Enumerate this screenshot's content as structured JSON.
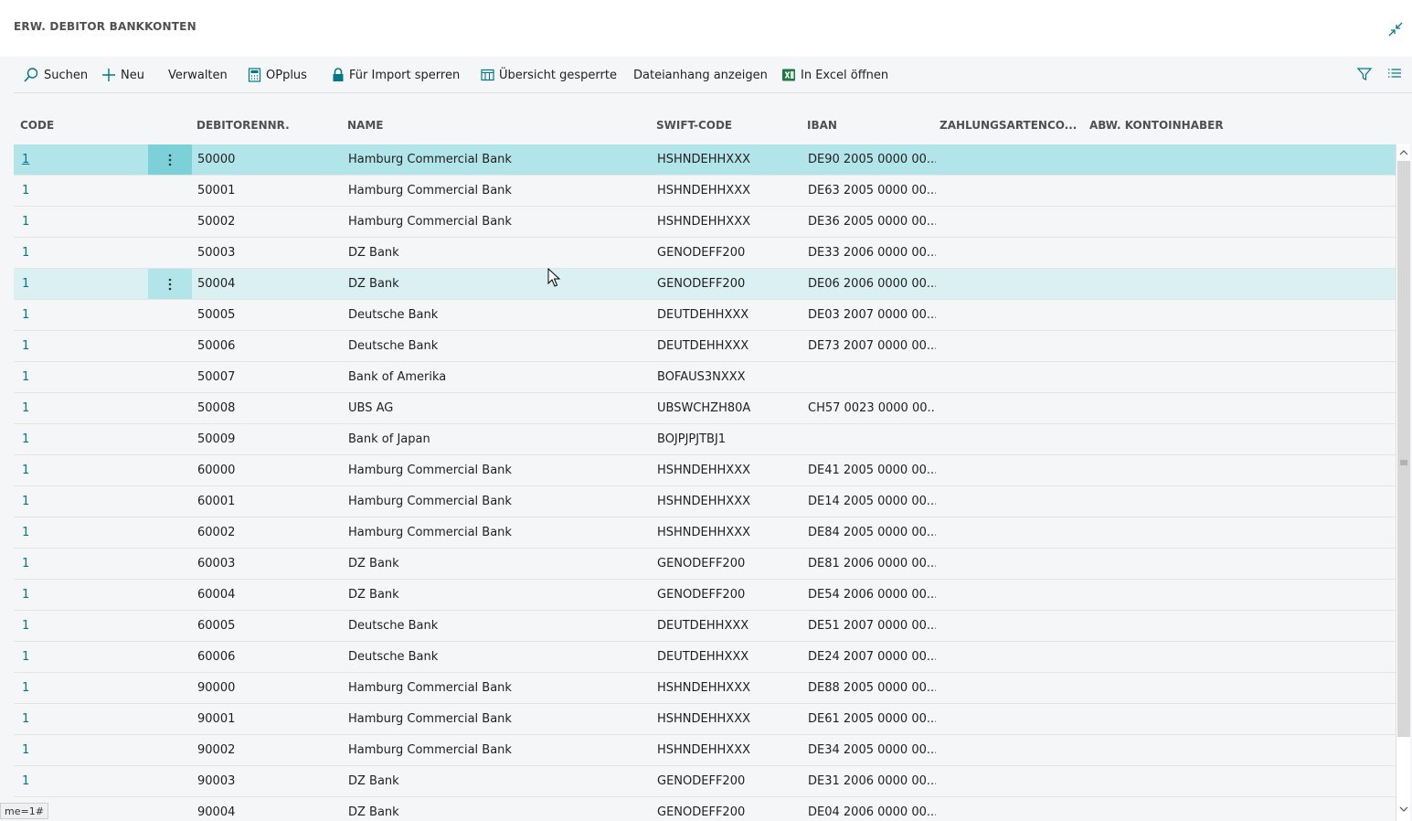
{
  "page": {
    "title": "ERW. DEBITOR BANKKONTEN"
  },
  "toolbar": {
    "search_label": "Suchen",
    "new_label": "Neu",
    "manage_label": "Verwalten",
    "opplus_label": "OPplus",
    "lock_import_label": "Für Import sperren",
    "overview_locked_label": "Übersicht gesperrte",
    "attachment_label": "Dateianhang anzeigen",
    "excel_label": "In Excel öffnen"
  },
  "columns": {
    "code": "CODE",
    "debitor": "DEBITORENNR.",
    "name": "NAME",
    "swift": "SWIFT-CODE",
    "iban": "IBAN",
    "payment_type": "ZAHLUNGSARTENCO...",
    "account_holder": "ABW. KONTOINHABER"
  },
  "rows": [
    {
      "code": "1",
      "debitor": "50000",
      "name": "Hamburg Commercial Bank",
      "swift": "HSHNDEHHXXX",
      "iban": "DE90 2005 0000 00..."
    },
    {
      "code": "1",
      "debitor": "50001",
      "name": "Hamburg Commercial Bank",
      "swift": "HSHNDEHHXXX",
      "iban": "DE63 2005 0000 00..."
    },
    {
      "code": "1",
      "debitor": "50002",
      "name": "Hamburg Commercial Bank",
      "swift": "HSHNDEHHXXX",
      "iban": "DE36 2005 0000 00..."
    },
    {
      "code": "1",
      "debitor": "50003",
      "name": "DZ Bank",
      "swift": "GENODEFF200",
      "iban": "DE33 2006 0000 00..."
    },
    {
      "code": "1",
      "debitor": "50004",
      "name": "DZ Bank",
      "swift": "GENODEFF200",
      "iban": "DE06 2006 0000 00..."
    },
    {
      "code": "1",
      "debitor": "50005",
      "name": "Deutsche Bank",
      "swift": "DEUTDEHHXXX",
      "iban": "DE03 2007 0000 00..."
    },
    {
      "code": "1",
      "debitor": "50006",
      "name": "Deutsche Bank",
      "swift": "DEUTDEHHXXX",
      "iban": "DE73 2007 0000 00..."
    },
    {
      "code": "1",
      "debitor": "50007",
      "name": "Bank of Amerika",
      "swift": "BOFAUS3NXXX",
      "iban": ""
    },
    {
      "code": "1",
      "debitor": "50008",
      "name": "UBS AG",
      "swift": "UBSWCHZH80A",
      "iban": "CH57 0023 0000 00..."
    },
    {
      "code": "1",
      "debitor": "50009",
      "name": "Bank of Japan",
      "swift": "BOJPJPJTBJ1",
      "iban": ""
    },
    {
      "code": "1",
      "debitor": "60000",
      "name": "Hamburg Commercial Bank",
      "swift": "HSHNDEHHXXX",
      "iban": "DE41 2005 0000 00..."
    },
    {
      "code": "1",
      "debitor": "60001",
      "name": "Hamburg Commercial Bank",
      "swift": "HSHNDEHHXXX",
      "iban": "DE14 2005 0000 00..."
    },
    {
      "code": "1",
      "debitor": "60002",
      "name": "Hamburg Commercial Bank",
      "swift": "HSHNDEHHXXX",
      "iban": "DE84 2005 0000 00..."
    },
    {
      "code": "1",
      "debitor": "60003",
      "name": "DZ Bank",
      "swift": "GENODEFF200",
      "iban": "DE81 2006 0000 00..."
    },
    {
      "code": "1",
      "debitor": "60004",
      "name": "DZ Bank",
      "swift": "GENODEFF200",
      "iban": "DE54 2006 0000 00..."
    },
    {
      "code": "1",
      "debitor": "60005",
      "name": "Deutsche Bank",
      "swift": "DEUTDEHHXXX",
      "iban": "DE51 2007 0000 00..."
    },
    {
      "code": "1",
      "debitor": "60006",
      "name": "Deutsche Bank",
      "swift": "DEUTDEHHXXX",
      "iban": "DE24 2007 0000 00..."
    },
    {
      "code": "1",
      "debitor": "90000",
      "name": "Hamburg Commercial Bank",
      "swift": "HSHNDEHHXXX",
      "iban": "DE88 2005 0000 00..."
    },
    {
      "code": "1",
      "debitor": "90001",
      "name": "Hamburg Commercial Bank",
      "swift": "HSHNDEHHXXX",
      "iban": "DE61 2005 0000 00..."
    },
    {
      "code": "1",
      "debitor": "90002",
      "name": "Hamburg Commercial Bank",
      "swift": "HSHNDEHHXXX",
      "iban": "DE34 2005 0000 00..."
    },
    {
      "code": "1",
      "debitor": "90003",
      "name": "DZ Bank",
      "swift": "GENODEFF200",
      "iban": "DE31 2006 0000 00..."
    },
    {
      "code": "",
      "debitor": "90004",
      "name": "DZ Bank",
      "swift": "GENODEFF200",
      "iban": "DE04 2006 0000 00..."
    }
  ],
  "status_tip": "me=1#",
  "colors": {
    "accent": "#00788a",
    "selected_row": "#b2e5ea",
    "hover_row": "#daf0f3"
  }
}
